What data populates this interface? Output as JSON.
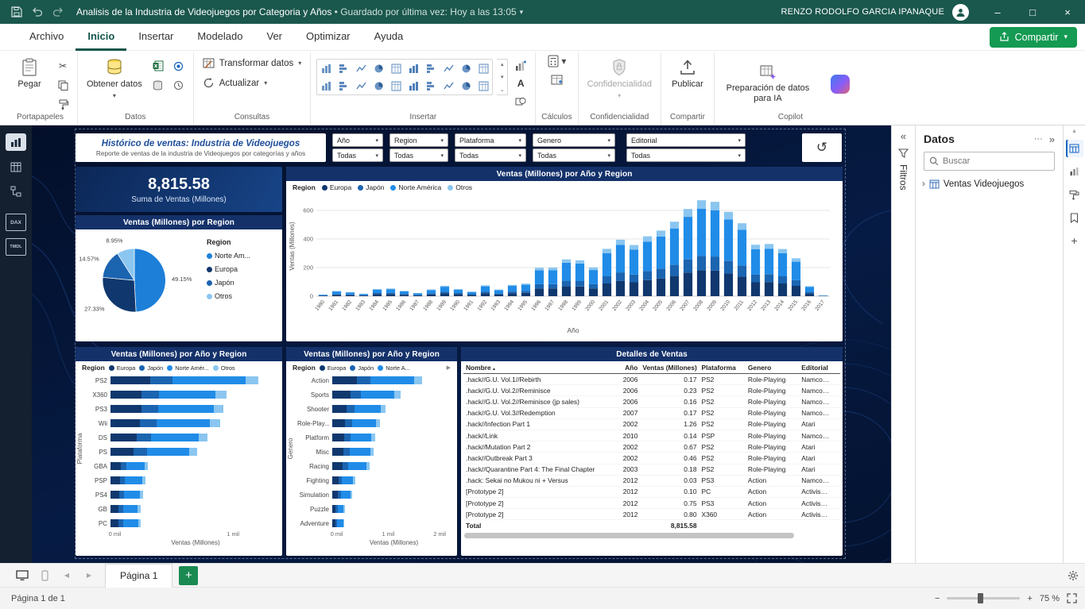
{
  "icons": {
    "caret": "▾",
    "chevron_left": "«",
    "chevron_right": "»",
    "chevron_item": "›",
    "dots": "···",
    "reset": "↺",
    "minus": "−",
    "plus": "+",
    "up": "▴",
    "down": "▾",
    "more": "⌄",
    "sort": "▲",
    "back": "◀",
    "fwd": "▶",
    "win_min": "–",
    "win_max": "□",
    "win_close": "×",
    "play": "▶"
  },
  "colors": {
    "titlebar": "#1a574d",
    "accent_green": "#149a52",
    "canvas_bg": "#061b44",
    "card_header": "#14316a",
    "series": {
      "europa": "#10386e",
      "japon": "#1b64b0",
      "norteamerica": "#208ce8",
      "otros": "#8ac6f0"
    }
  },
  "titlebar": {
    "title": "Analisis de la Industria de Videojuegos por Categoria y Años",
    "autosave": "• Guardado por última vez: Hoy a las 13:05",
    "user": "RENZO RODOLFO GARCIA IPANAQUE"
  },
  "menubar": {
    "tabs": [
      "Archivo",
      "Inicio",
      "Insertar",
      "Modelado",
      "Ver",
      "Optimizar",
      "Ayuda"
    ],
    "active_tab": "Inicio",
    "share": "Compartir"
  },
  "ribbon": {
    "paste": "Pegar",
    "get_data": "Obtener datos",
    "transform": "Transformar datos",
    "refresh": "Actualizar",
    "confidentiality": "Confidencialidad",
    "publish": "Publicar",
    "ai_prep": "Preparación de datos para IA",
    "groups": [
      "Portapapeles",
      "Datos",
      "Consultas",
      "Insertar",
      "Cálculos",
      "Confidencialidad",
      "Compartir",
      "Copilot"
    ]
  },
  "view_rail": {
    "dax_label": "DAX",
    "tmdl_label": "TMDL"
  },
  "report": {
    "title": "Histórico de ventas: Industria de Videojuegos",
    "subtitle": "Reporte de ventas de la industria de Videojuegos por categorías y años",
    "slicers": [
      {
        "label": "Año",
        "value": "Todas"
      },
      {
        "label": "Region",
        "value": "Todas"
      },
      {
        "label": "Plataforma",
        "value": "Todas"
      },
      {
        "label": "Genero",
        "value": "Todas"
      },
      {
        "label": "Editorial",
        "value": "Todas"
      }
    ],
    "kpi": {
      "value": "8,815.58",
      "label": "Suma de Ventas (Millones)"
    }
  },
  "chart_data": [
    {
      "type": "pie",
      "title": "Ventas (Millones) por Region",
      "legend_title": "Region",
      "slices": [
        {
          "label": "Norte Am...",
          "pct": 49.15,
          "pct_label": "49.15%",
          "color": "#1d7fd8"
        },
        {
          "label": "Europa",
          "pct": 27.33,
          "pct_label": "27.33%",
          "color": "#10386e"
        },
        {
          "label": "Japón",
          "pct": 14.57,
          "pct_label": "14.57%",
          "color": "#1b64b0"
        },
        {
          "label": "Otros",
          "pct": 8.95,
          "pct_label": "8.95%",
          "color": "#8ac6f0"
        }
      ]
    },
    {
      "type": "bar",
      "title": "Ventas (Millones) por Año y Region",
      "legend_title": "Region",
      "legend_display": [
        "Europa",
        "Japón",
        "Norte América",
        "Otros"
      ],
      "xlabel": "Año",
      "ylabel": "Ventas (Millones)",
      "ylim": [
        0,
        700
      ],
      "yticks": [
        0,
        200,
        400,
        600
      ],
      "categories": [
        "1980",
        "1981",
        "1982",
        "1983",
        "1984",
        "1985",
        "1986",
        "1987",
        "1988",
        "1989",
        "1990",
        "1991",
        "1992",
        "1993",
        "1994",
        "1995",
        "1996",
        "1997",
        "1998",
        "1999",
        "2000",
        "2001",
        "2002",
        "2003",
        "2004",
        "2005",
        "2006",
        "2007",
        "2008",
        "2009",
        "2010",
        "2011",
        "2012",
        "2013",
        "2014",
        "2015",
        "2016",
        "2017"
      ],
      "series": [
        {
          "name": "Europa",
          "color": "#10386e",
          "values": [
            3,
            10,
            8,
            5,
            14,
            15,
            10,
            6,
            13,
            20,
            14,
            9,
            21,
            12,
            21,
            24,
            54,
            54,
            69,
            68,
            54,
            89,
            107,
            97,
            113,
            124,
            141,
            165,
            181,
            178,
            159,
            138,
            97,
            99,
            89,
            72,
            19,
            1
          ]
        },
        {
          "name": "Japón",
          "color": "#1b64b0",
          "values": [
            2,
            5,
            4,
            3,
            8,
            8,
            6,
            3,
            7,
            11,
            8,
            5,
            11,
            7,
            12,
            13,
            30,
            30,
            39,
            38,
            30,
            50,
            59,
            54,
            63,
            69,
            78,
            92,
            101,
            99,
            89,
            77,
            54,
            55,
            50,
            40,
            11,
            1
          ]
        },
        {
          "name": "Norte América",
          "color": "#208ce8",
          "values": [
            5,
            18,
            14,
            7,
            23,
            26,
            18,
            11,
            23,
            35,
            23,
            15,
            37,
            23,
            39,
            43,
            97,
            98,
            126,
            122,
            99,
            162,
            193,
            175,
            205,
            225,
            255,
            298,
            329,
            324,
            289,
            249,
            177,
            178,
            161,
            129,
            34,
            3
          ]
        },
        {
          "name": "Otros",
          "color": "#8ac6f0",
          "values": [
            1,
            3,
            3,
            2,
            5,
            5,
            3,
            2,
            4,
            7,
            5,
            3,
            7,
            4,
            7,
            8,
            18,
            18,
            23,
            23,
            18,
            30,
            36,
            32,
            38,
            41,
            47,
            55,
            60,
            59,
            53,
            46,
            32,
            33,
            30,
            24,
            6,
            0
          ]
        }
      ]
    },
    {
      "type": "bar-horizontal",
      "title": "Ventas (Millones) por Año y Region",
      "legend_title": "Region",
      "legend_display": [
        "Europa",
        "Japón",
        "Norte Amér...",
        "Otros"
      ],
      "xlabel": "Ventas (Millones)",
      "ylabel": "Plataforma",
      "xlim": [
        0,
        1400
      ],
      "xticks": [
        {
          "v": 0,
          "label": "0 mil"
        },
        {
          "v": 1000,
          "label": "1 mil"
        }
      ],
      "categories": [
        "PS2",
        "X360",
        "PS3",
        "Wii",
        "DS",
        "PS",
        "GBA",
        "PSP",
        "PS4",
        "GB",
        "PC"
      ],
      "series": [
        {
          "name": "Europa",
          "color": "#10386e",
          "values": [
            339,
            265,
            259,
            250,
            222,
            197,
            86,
            80,
            75,
            69,
            70
          ]
        },
        {
          "name": "Japón",
          "color": "#1b64b0",
          "values": [
            188,
            147,
            144,
            139,
            123,
            110,
            48,
            44,
            42,
            38,
            39
          ]
        },
        {
          "name": "Norte América",
          "color": "#208ce8",
          "values": [
            615,
            480,
            469,
            454,
            403,
            358,
            156,
            145,
            136,
            125,
            127
          ]
        },
        {
          "name": "Otros",
          "color": "#8ac6f0",
          "values": [
            113,
            88,
            86,
            83,
            74,
            66,
            29,
            27,
            25,
            23,
            23
          ]
        }
      ]
    },
    {
      "type": "bar-horizontal",
      "title": "Ventas (Millones) por Año y Region",
      "legend_title": "Region",
      "legend_display": [
        "Europa",
        "Japón",
        "Norte A..."
      ],
      "legend_overflow": "▶",
      "xlabel": "Ventas (Millones)",
      "ylabel": "Genero",
      "xlim": [
        0,
        2300
      ],
      "xticks": [
        {
          "v": 0,
          "label": "0 mil"
        },
        {
          "v": 1000,
          "label": "1 mil"
        },
        {
          "v": 2000,
          "label": "2 mil"
        }
      ],
      "categories": [
        "Action",
        "Sports",
        "Shooter",
        "Role-Play...",
        "Platform",
        "Misc",
        "Racing",
        "Fighting",
        "Simulation",
        "Puzzle",
        "Adventure"
      ],
      "series": [
        {
          "name": "Europa",
          "color": "#10386e",
          "values": [
            473,
            359,
            280,
            250,
            225,
            219,
            198,
            121,
            106,
            66,
            65
          ]
        },
        {
          "name": "Japón",
          "color": "#1b64b0",
          "values": [
            263,
            200,
            156,
            139,
            125,
            122,
            110,
            67,
            59,
            37,
            36
          ]
        },
        {
          "name": "Norte América",
          "color": "#208ce8",
          "values": [
            858,
            652,
            508,
            454,
            407,
            397,
            359,
            220,
            192,
            120,
            117
          ]
        },
        {
          "name": "Otros",
          "color": "#8ac6f0",
          "values": [
            158,
            120,
            93,
            84,
            75,
            73,
            66,
            40,
            35,
            22,
            22
          ]
        }
      ]
    },
    {
      "type": "table",
      "title": "Detalles de Ventas",
      "columns": [
        "Nombre",
        "Año",
        "Ventas (Millones)",
        "Plataforma",
        "Genero",
        "Editorial"
      ],
      "rows": [
        [
          ".hack//G.U. Vol.1//Rebirth",
          "2006",
          "0.17",
          "PS2",
          "Role-Playing",
          "Namco…"
        ],
        [
          ".hack//G.U. Vol.2//Reminisce",
          "2006",
          "0.23",
          "PS2",
          "Role-Playing",
          "Namco…"
        ],
        [
          ".hack//G.U. Vol.2//Reminisce (jp sales)",
          "2006",
          "0.16",
          "PS2",
          "Role-Playing",
          "Namco…"
        ],
        [
          ".hack//G.U. Vol.3//Redemption",
          "2007",
          "0.17",
          "PS2",
          "Role-Playing",
          "Namco…"
        ],
        [
          ".hack//Infection Part 1",
          "2002",
          "1.26",
          "PS2",
          "Role-Playing",
          "Atari"
        ],
        [
          ".hack//Link",
          "2010",
          "0.14",
          "PSP",
          "Role-Playing",
          "Namco…"
        ],
        [
          ".hack//Mutation Part 2",
          "2002",
          "0.67",
          "PS2",
          "Role-Playing",
          "Atari"
        ],
        [
          ".hack//Outbreak Part 3",
          "2002",
          "0.46",
          "PS2",
          "Role-Playing",
          "Atari"
        ],
        [
          ".hack//Quarantine Part 4: The Final Chapter",
          "2003",
          "0.18",
          "PS2",
          "Role-Playing",
          "Atari"
        ],
        [
          ".hack: Sekai no Mukou ni + Versus",
          "2012",
          "0.03",
          "PS3",
          "Action",
          "Namco…"
        ],
        [
          "[Prototype 2]",
          "2012",
          "0.10",
          "PC",
          "Action",
          "Activis…"
        ],
        [
          "[Prototype 2]",
          "2012",
          "0.75",
          "PS3",
          "Action",
          "Activis…"
        ],
        [
          "[Prototype 2]",
          "2012",
          "0.80",
          "X360",
          "Action",
          "Activis…"
        ]
      ],
      "total_label": "Total",
      "total_value": "8,815.58"
    }
  ],
  "filters_pane": {
    "title": "Filtros"
  },
  "data_pane": {
    "title": "Datos",
    "search_placeholder": "Buscar",
    "field": "Ventas Videojuegos"
  },
  "pagebar": {
    "tab": "Página 1"
  },
  "statusbar": {
    "page_info": "Página 1 de 1",
    "zoom": "75 %"
  }
}
